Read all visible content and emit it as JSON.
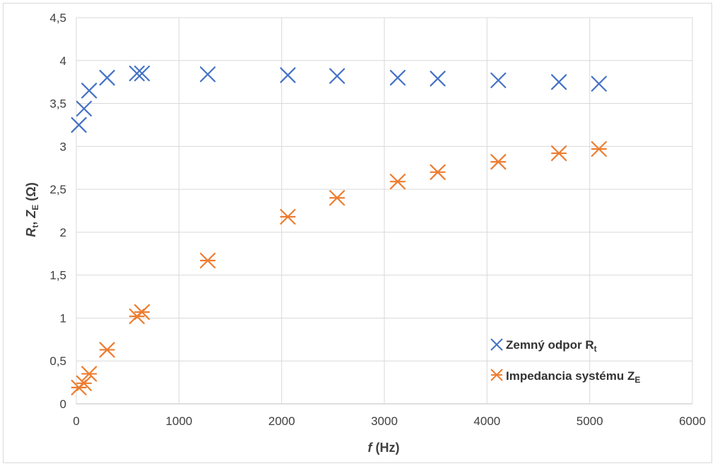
{
  "chart_data": {
    "type": "scatter",
    "xlabel": {
      "symbol": "f",
      "unit": " (Hz)"
    },
    "ylabel": {
      "r_symbol": "R",
      "r_sub": "t",
      "sep": ", ",
      "z_symbol": "Z",
      "z_sub": "E",
      "unit": " (Ω)"
    },
    "xlim": [
      0,
      6000
    ],
    "ylim": [
      0,
      4.5
    ],
    "x_ticks": [
      {
        "value": 0,
        "label": "0"
      },
      {
        "value": 1000,
        "label": "1000"
      },
      {
        "value": 2000,
        "label": "2000"
      },
      {
        "value": 3000,
        "label": "3000"
      },
      {
        "value": 4000,
        "label": "4000"
      },
      {
        "value": 5000,
        "label": "5000"
      },
      {
        "value": 6000,
        "label": "6000"
      }
    ],
    "y_ticks": [
      {
        "value": 0,
        "label": "0"
      },
      {
        "value": 0.5,
        "label": "0,5"
      },
      {
        "value": 1,
        "label": "1"
      },
      {
        "value": 1.5,
        "label": "1,5"
      },
      {
        "value": 2,
        "label": "2"
      },
      {
        "value": 2.5,
        "label": "2,5"
      },
      {
        "value": 3,
        "label": "3"
      },
      {
        "value": 3.5,
        "label": "3,5"
      },
      {
        "value": 4,
        "label": "4"
      },
      {
        "value": 4.5,
        "label": "4,5"
      }
    ],
    "grid": true,
    "legend_position": "bottom-right",
    "series": [
      {
        "name": "Zemný odpor R",
        "name_sub": "t",
        "marker": "x",
        "color": "#4472c4",
        "points": [
          {
            "x": 25,
            "y": 3.25
          },
          {
            "x": 75,
            "y": 3.44
          },
          {
            "x": 125,
            "y": 3.65
          },
          {
            "x": 300,
            "y": 3.8
          },
          {
            "x": 590,
            "y": 3.85
          },
          {
            "x": 640,
            "y": 3.85
          },
          {
            "x": 1280,
            "y": 3.84
          },
          {
            "x": 2060,
            "y": 3.83
          },
          {
            "x": 2540,
            "y": 3.82
          },
          {
            "x": 3130,
            "y": 3.8
          },
          {
            "x": 3520,
            "y": 3.79
          },
          {
            "x": 4110,
            "y": 3.77
          },
          {
            "x": 4700,
            "y": 3.75
          },
          {
            "x": 5090,
            "y": 3.73
          }
        ]
      },
      {
        "name": "Impedancia systému Z",
        "name_sub": "E",
        "marker": "star",
        "color": "#ed7d31",
        "points": [
          {
            "x": 25,
            "y": 0.19
          },
          {
            "x": 75,
            "y": 0.24
          },
          {
            "x": 125,
            "y": 0.35
          },
          {
            "x": 300,
            "y": 0.63
          },
          {
            "x": 590,
            "y": 1.02
          },
          {
            "x": 640,
            "y": 1.07
          },
          {
            "x": 1280,
            "y": 1.67
          },
          {
            "x": 2060,
            "y": 2.18
          },
          {
            "x": 2540,
            "y": 2.4
          },
          {
            "x": 3130,
            "y": 2.59
          },
          {
            "x": 3520,
            "y": 2.7
          },
          {
            "x": 4110,
            "y": 2.82
          },
          {
            "x": 4700,
            "y": 2.92
          },
          {
            "x": 5090,
            "y": 2.97
          }
        ]
      }
    ]
  }
}
